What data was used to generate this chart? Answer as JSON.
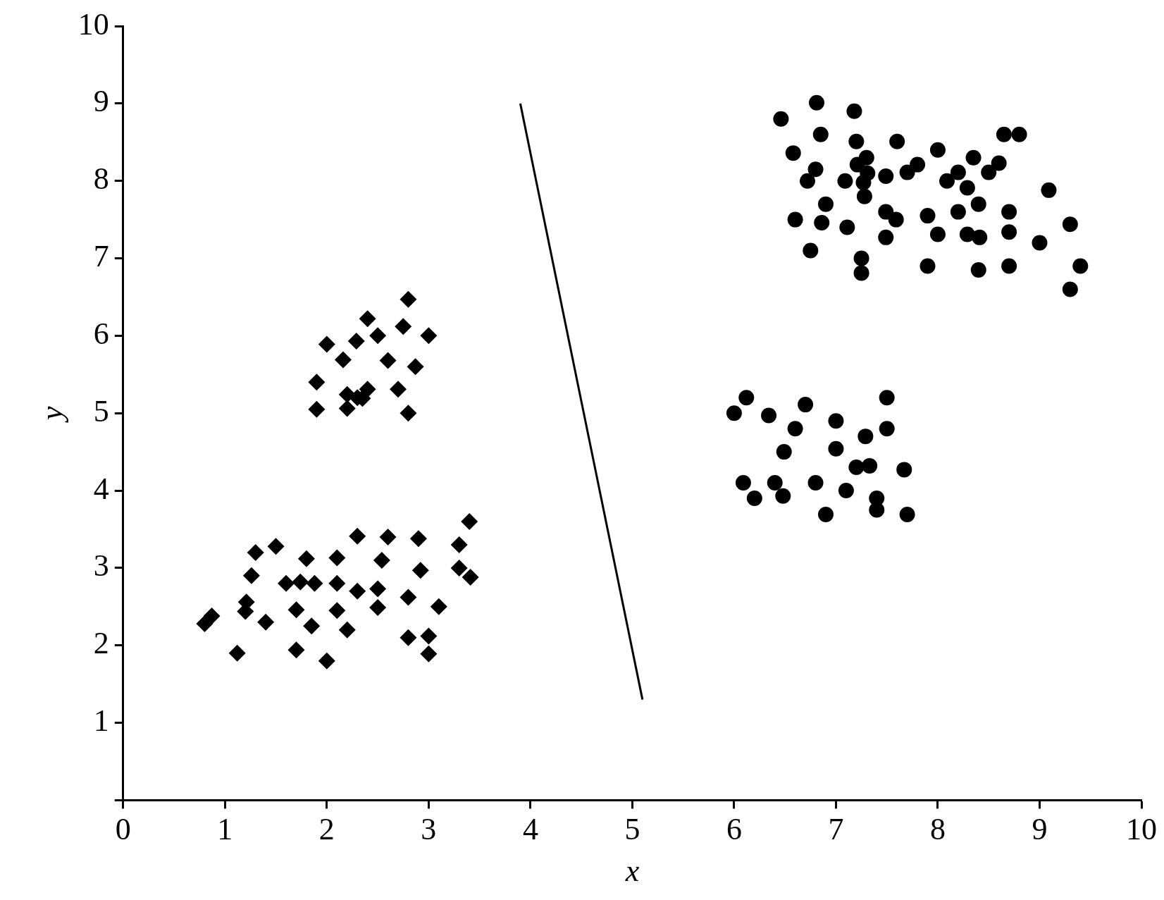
{
  "chart_data": {
    "type": "scatter",
    "xlabel": "x",
    "ylabel": "y",
    "xlim": [
      0,
      10
    ],
    "ylim": [
      0,
      10
    ],
    "xticks": [
      0,
      1,
      2,
      3,
      4,
      5,
      6,
      7,
      8,
      9,
      10
    ],
    "yticks": [
      {
        "value": 0,
        "label": null
      },
      1,
      2,
      3,
      4,
      5,
      6,
      7,
      8,
      9,
      10
    ],
    "grid": false,
    "legend": false,
    "series": [
      {
        "type": "scatter",
        "marker": "diamond",
        "color": "#000000",
        "x": [
          0.8,
          0.87,
          1.12,
          1.2,
          1.21,
          1.26,
          1.3,
          1.4,
          1.5,
          1.6,
          1.7,
          1.7,
          1.74,
          1.8,
          1.85,
          1.88,
          2.0,
          2.1,
          2.1,
          2.1,
          2.2,
          2.3,
          2.3,
          2.5,
          2.5,
          2.54,
          2.6,
          2.8,
          2.8,
          2.9,
          2.92,
          3.0,
          3.0,
          3.1,
          3.3,
          3.3,
          3.4,
          3.41,
          1.9,
          1.9,
          2.0,
          2.16,
          2.2,
          2.2,
          2.29,
          2.3,
          2.35,
          2.4,
          2.4,
          2.5,
          2.6,
          2.7,
          2.75,
          2.8,
          2.8,
          2.87,
          3.0
        ],
        "values": [
          2.28,
          2.38,
          1.9,
          2.44,
          2.56,
          2.9,
          3.2,
          2.3,
          3.28,
          2.8,
          2.46,
          1.94,
          2.82,
          3.12,
          2.25,
          2.8,
          1.8,
          3.13,
          2.8,
          2.45,
          2.2,
          3.41,
          2.7,
          2.73,
          2.49,
          3.1,
          3.4,
          2.62,
          2.1,
          3.38,
          2.97,
          2.12,
          1.89,
          2.5,
          3.3,
          3.0,
          3.6,
          2.88,
          5.4,
          5.05,
          5.89,
          5.69,
          5.06,
          5.24,
          5.93,
          5.2,
          5.19,
          6.22,
          5.31,
          6.0,
          5.68,
          5.31,
          6.12,
          6.47,
          5.0,
          5.6,
          6.0
        ]
      },
      {
        "type": "scatter",
        "marker": "circle",
        "color": "#000000",
        "x": [
          6.46,
          6.58,
          6.6,
          6.72,
          6.75,
          6.8,
          6.81,
          6.85,
          6.86,
          6.9,
          7.09,
          7.11,
          7.18,
          7.2,
          7.21,
          7.27,
          7.3,
          7.31,
          7.28,
          7.25,
          7.25,
          7.49,
          7.6,
          7.49,
          7.59,
          7.49,
          7.7,
          7.8,
          8.0,
          7.9,
          8.0,
          7.9,
          8.09,
          8.2,
          8.2,
          8.29,
          8.35,
          8.29,
          8.4,
          8.41,
          8.4,
          8.5,
          8.6,
          8.65,
          8.8,
          8.7,
          8.7,
          8.7,
          9.0,
          9.09,
          9.3,
          9.3,
          9.4,
          6.0,
          6.12,
          6.09,
          6.2,
          6.34,
          6.4,
          6.48,
          6.49,
          6.6,
          6.7,
          6.8,
          6.9,
          7.0,
          7.0,
          7.1,
          7.2,
          7.29,
          7.33,
          7.4,
          7.4,
          7.5,
          7.5,
          7.67,
          7.7
        ],
        "values": [
          8.8,
          8.36,
          7.5,
          8.0,
          7.1,
          8.15,
          9.01,
          8.6,
          7.46,
          7.7,
          8.0,
          7.4,
          8.9,
          8.51,
          8.21,
          7.98,
          8.3,
          8.1,
          7.8,
          7.0,
          6.81,
          8.06,
          8.51,
          7.6,
          7.5,
          7.27,
          8.11,
          8.21,
          8.4,
          7.55,
          7.31,
          6.9,
          8.0,
          8.11,
          7.6,
          7.91,
          8.3,
          7.31,
          7.7,
          7.27,
          6.85,
          8.11,
          8.23,
          8.6,
          8.6,
          7.6,
          7.34,
          6.9,
          7.2,
          7.88,
          7.44,
          6.6,
          6.9,
          5.0,
          5.2,
          4.1,
          3.9,
          4.97,
          4.1,
          3.93,
          4.5,
          4.8,
          5.11,
          4.1,
          3.69,
          4.9,
          4.54,
          4.0,
          4.3,
          4.7,
          4.32,
          3.9,
          3.75,
          5.2,
          4.8,
          4.27,
          3.69
        ]
      },
      {
        "type": "line",
        "marker": "none",
        "line_style": "solid",
        "color": "#000000",
        "x": [
          3.9,
          5.1
        ],
        "values": [
          9.0,
          1.3
        ]
      }
    ]
  }
}
